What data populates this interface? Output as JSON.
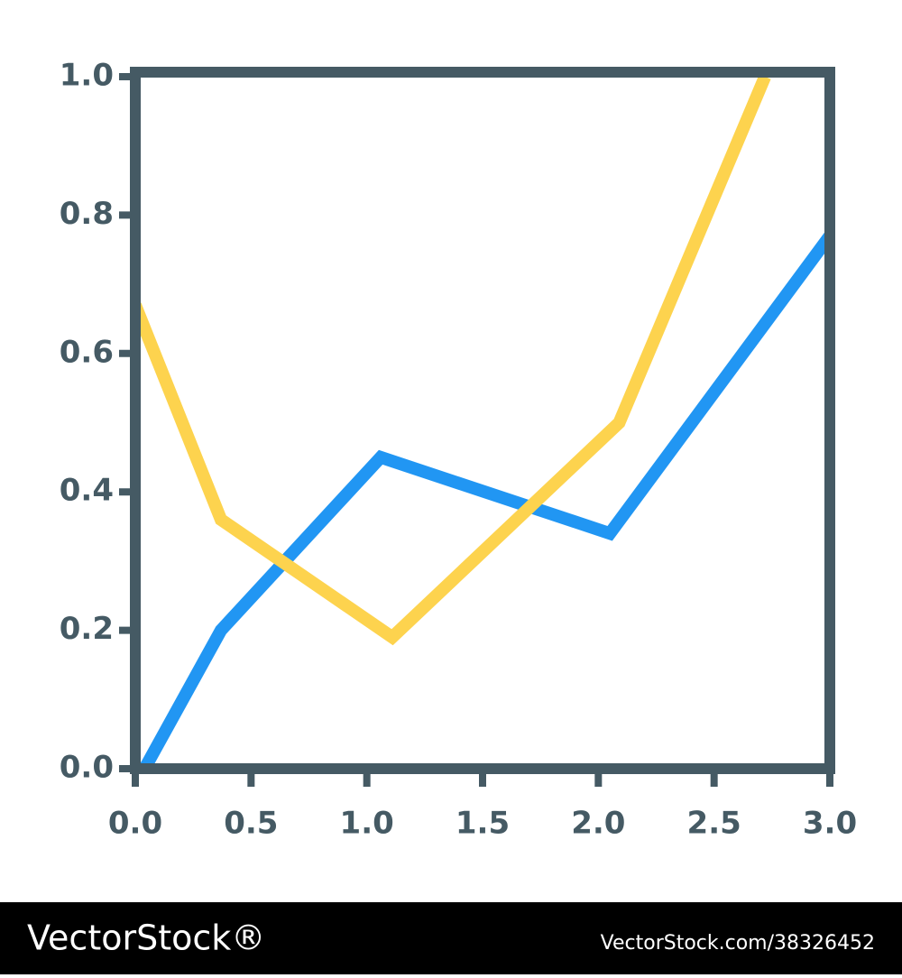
{
  "chart_data": {
    "type": "line",
    "x_axis": {
      "xlim": [
        0,
        3
      ],
      "xticks": [
        {
          "value": 0,
          "label": "0.0"
        },
        {
          "value": 0.5,
          "label": "0.5"
        },
        {
          "value": 1,
          "label": "1.0"
        },
        {
          "value": 1.5,
          "label": "1.5"
        },
        {
          "value": 2,
          "label": "2.0"
        },
        {
          "value": 2.5,
          "label": "2.5"
        },
        {
          "value": 3,
          "label": "3.0"
        }
      ]
    },
    "ylim": [
      0,
      1
    ],
    "yticks": [
      {
        "value": 0,
        "label": "0.0"
      },
      {
        "value": 0.2,
        "label": "0.2"
      },
      {
        "value": 0.4,
        "label": "0.4"
      },
      {
        "value": 0.6,
        "label": "0.6"
      },
      {
        "value": 0.8,
        "label": "0.8"
      },
      {
        "value": 1,
        "label": "1.0"
      }
    ],
    "axis_color": "#455a64",
    "series": [
      {
        "color": "#2196f3",
        "x": [
          0.04,
          0.37,
          1.06,
          2.05,
          3.0
        ],
        "values": [
          0,
          0.2,
          0.45,
          0.34,
          0.77
        ]
      },
      {
        "color": "#fdd34e",
        "x": [
          0.0,
          0.37,
          1.11,
          2.09,
          2.72
        ],
        "values": [
          0.67,
          0.36,
          0.19,
          0.5,
          1.0
        ]
      }
    ]
  },
  "watermark": {
    "brand": "VectorStock®",
    "id": "VectorStock.com/38326452"
  }
}
